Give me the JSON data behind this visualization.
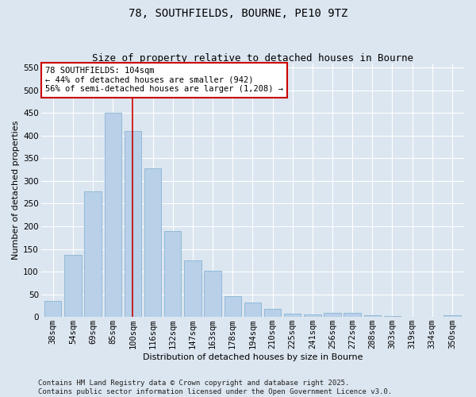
{
  "title": "78, SOUTHFIELDS, BOURNE, PE10 9TZ",
  "subtitle": "Size of property relative to detached houses in Bourne",
  "xlabel": "Distribution of detached houses by size in Bourne",
  "ylabel": "Number of detached properties",
  "bar_color": "#b8d0e8",
  "bar_edge_color": "#8ab4d4",
  "background_color": "#dce6f0",
  "grid_color": "#ffffff",
  "categories": [
    "38sqm",
    "54sqm",
    "69sqm",
    "85sqm",
    "100sqm",
    "116sqm",
    "132sqm",
    "147sqm",
    "163sqm",
    "178sqm",
    "194sqm",
    "210sqm",
    "225sqm",
    "241sqm",
    "256sqm",
    "272sqm",
    "288sqm",
    "303sqm",
    "319sqm",
    "334sqm",
    "350sqm"
  ],
  "values": [
    35,
    137,
    277,
    450,
    410,
    328,
    190,
    125,
    102,
    46,
    31,
    18,
    8,
    5,
    9,
    9,
    3,
    2,
    1,
    1,
    3
  ],
  "vline_x": 4,
  "vline_color": "#cc0000",
  "annotation_text": "78 SOUTHFIELDS: 104sqm\n← 44% of detached houses are smaller (942)\n56% of semi-detached houses are larger (1,208) →",
  "ylim": [
    0,
    560
  ],
  "yticks": [
    0,
    50,
    100,
    150,
    200,
    250,
    300,
    350,
    400,
    450,
    500,
    550
  ],
  "footer_text": "Contains HM Land Registry data © Crown copyright and database right 2025.\nContains public sector information licensed under the Open Government Licence v3.0.",
  "title_fontsize": 10,
  "subtitle_fontsize": 9,
  "axis_label_fontsize": 8,
  "tick_fontsize": 7.5,
  "annotation_fontsize": 7.5,
  "footer_fontsize": 6.5
}
